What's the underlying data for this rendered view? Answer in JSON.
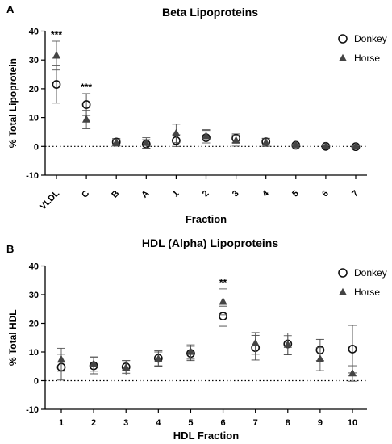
{
  "chart_data": [
    {
      "panel_label": "A",
      "type": "scatter",
      "title": "Beta Lipoproteins",
      "xlabel": "Fraction",
      "ylabel": "% Total Lipoprotein",
      "categories": [
        "VLDL",
        "C",
        "B",
        "A",
        "1",
        "2",
        "3",
        "4",
        "5",
        "6",
        "7"
      ],
      "ylim": [
        -10,
        40
      ],
      "yticks": [
        -10,
        0,
        10,
        20,
        30,
        40
      ],
      "tick_label_rotation": -45,
      "reference_line_y": 0,
      "grid": false,
      "legend_position": "top-right",
      "series": [
        {
          "name": "Donkey",
          "marker": "open-circle",
          "values": [
            21.5,
            14.5,
            1.5,
            0.8,
            2.0,
            3.0,
            2.8,
            1.6,
            0.4,
            0.0,
            -0.1
          ],
          "error": [
            6.5,
            3.8,
            1.2,
            1.5,
            2.0,
            2.5,
            1.5,
            1.2,
            0.3,
            0.2,
            0.2
          ]
        },
        {
          "name": "Horse",
          "marker": "filled-triangle",
          "values": [
            31.5,
            9.3,
            1.3,
            1.2,
            4.5,
            3.5,
            2.0,
            1.3,
            0.5,
            0.0,
            0.0
          ],
          "error": [
            5.0,
            3.2,
            1.2,
            1.8,
            3.2,
            2.3,
            1.9,
            1.3,
            0.3,
            0.2,
            0.2
          ]
        }
      ],
      "annotations": [
        {
          "category": "VLDL",
          "text": "***"
        },
        {
          "category": "C",
          "text": "***"
        }
      ]
    },
    {
      "panel_label": "B",
      "type": "scatter",
      "title": "HDL (Alpha) Lipoproteins",
      "xlabel": "HDL Fraction",
      "ylabel": "% Total HDL",
      "categories": [
        "1",
        "2",
        "3",
        "4",
        "5",
        "6",
        "7",
        "8",
        "9",
        "10"
      ],
      "ylim": [
        -10,
        40
      ],
      "yticks": [
        -10,
        0,
        10,
        20,
        30,
        40
      ],
      "tick_label_rotation": 0,
      "reference_line_y": 0,
      "grid": false,
      "legend_position": "top-right",
      "series": [
        {
          "name": "Donkey",
          "marker": "open-circle",
          "values": [
            4.7,
            5.2,
            4.8,
            7.8,
            9.5,
            22.5,
            11.5,
            12.8,
            10.7,
            11.0
          ],
          "error": [
            4.5,
            2.8,
            2.2,
            2.6,
            2.5,
            3.5,
            4.3,
            3.8,
            3.7,
            8.3
          ]
        },
        {
          "name": "Horse",
          "marker": "filled-triangle",
          "values": [
            7.3,
            5.8,
            4.5,
            7.5,
            10.0,
            27.5,
            13.0,
            12.5,
            7.5,
            2.5
          ],
          "error": [
            4.0,
            2.5,
            2.5,
            2.5,
            2.5,
            4.5,
            3.8,
            3.2,
            4.0,
            2.7
          ]
        }
      ],
      "annotations": [
        {
          "category": "6",
          "text": "**"
        }
      ]
    }
  ]
}
